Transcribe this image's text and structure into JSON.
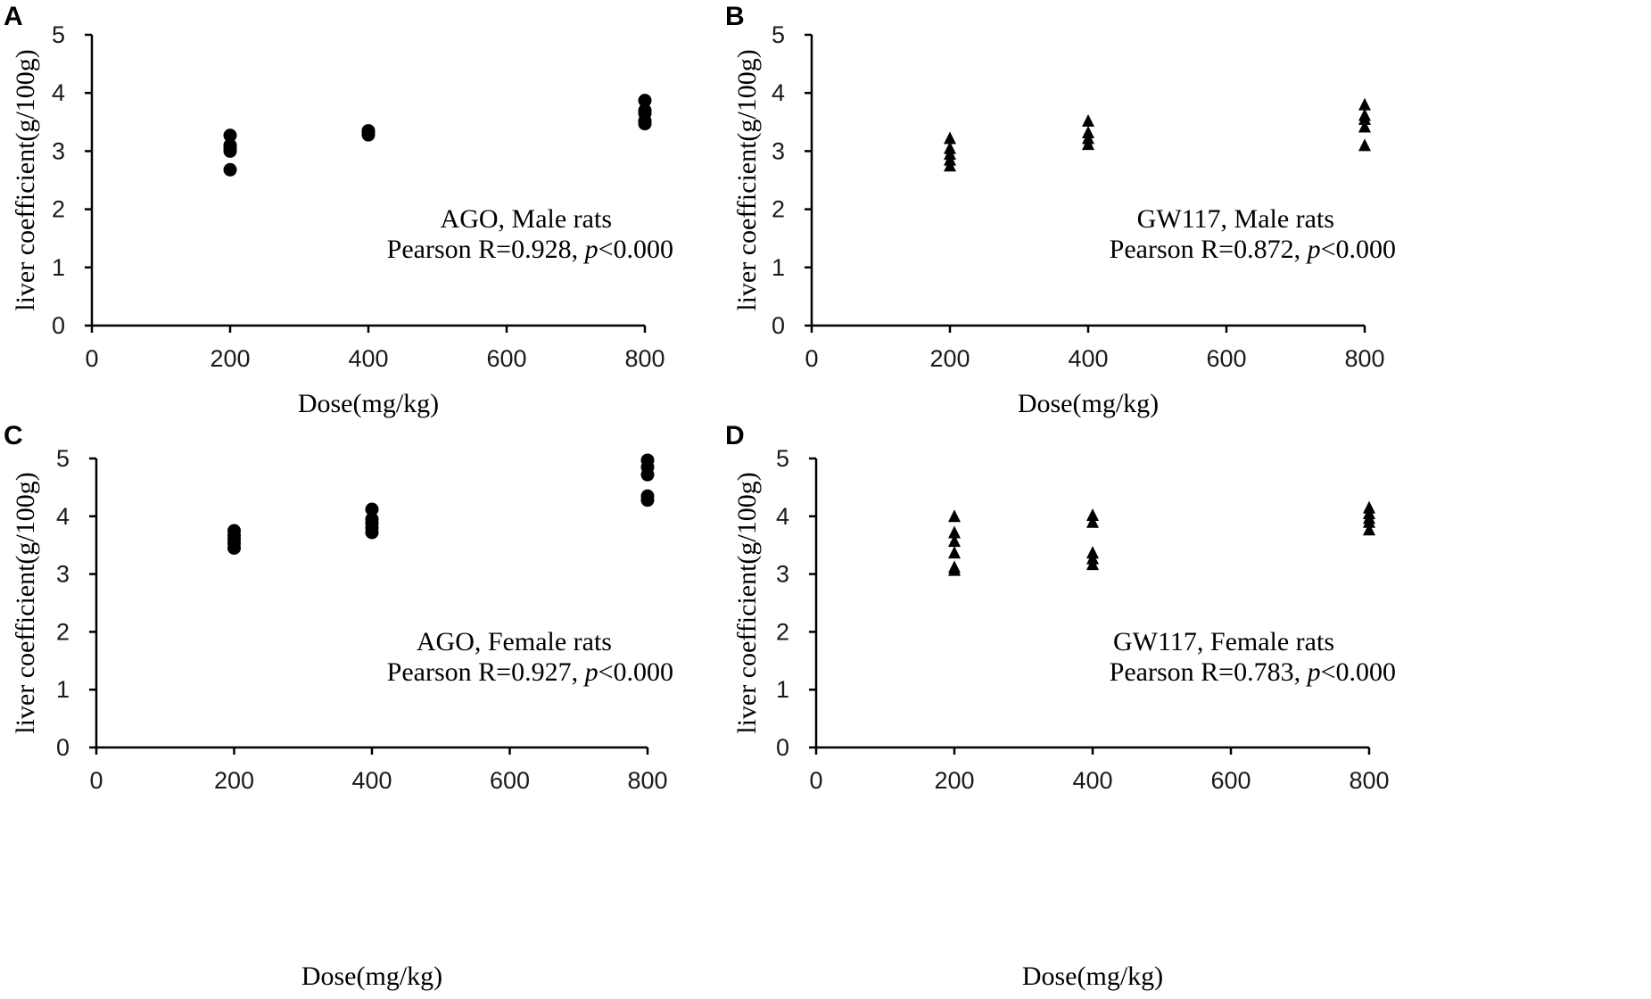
{
  "chart_data": [
    {
      "panel": "A",
      "type": "scatter",
      "marker": "circle",
      "title": "",
      "xlabel": "Dose(mg/kg)",
      "ylabel": "liver coefficient(g/100g)",
      "xlim": [
        0,
        800
      ],
      "ylim": [
        0,
        5
      ],
      "xticks": [
        "0",
        "200",
        "400",
        "600",
        "800"
      ],
      "yticks": [
        "0",
        "1",
        "2",
        "3",
        "4",
        "5"
      ],
      "grid": false,
      "annotation": {
        "line1": "AGO, Male rats",
        "line2_prefix": "Pearson R=0.928, ",
        "p_symbol": "p",
        "line2_suffix": "<0.000"
      },
      "series": [
        {
          "name": "AGO, Male rats",
          "x": [
            200,
            200,
            200,
            200,
            200,
            400,
            400,
            400,
            800,
            800,
            800,
            800,
            800
          ],
          "y": [
            2.68,
            3.0,
            3.05,
            3.1,
            3.27,
            3.28,
            3.32,
            3.35,
            3.47,
            3.52,
            3.65,
            3.7,
            3.87
          ]
        }
      ]
    },
    {
      "panel": "B",
      "type": "scatter",
      "marker": "triangle",
      "title": "",
      "xlabel": "Dose(mg/kg)",
      "ylabel": "liver coefficient(g/100g)",
      "xlim": [
        0,
        800
      ],
      "ylim": [
        0,
        5
      ],
      "xticks": [
        "0",
        "200",
        "400",
        "600",
        "800"
      ],
      "yticks": [
        "0",
        "1",
        "2",
        "3",
        "4",
        "5"
      ],
      "grid": false,
      "annotation": {
        "line1": "GW117, Male rats",
        "line2_prefix": "Pearson R=0.872, ",
        "p_symbol": "p",
        "line2_suffix": "<0.000"
      },
      "series": [
        {
          "name": "GW117, Male rats",
          "x": [
            200,
            200,
            200,
            200,
            200,
            400,
            400,
            400,
            400,
            800,
            800,
            800,
            800,
            800
          ],
          "y": [
            2.75,
            2.85,
            2.95,
            3.05,
            3.22,
            3.12,
            3.22,
            3.32,
            3.52,
            3.1,
            3.42,
            3.55,
            3.62,
            3.8
          ]
        }
      ]
    },
    {
      "panel": "C",
      "type": "scatter",
      "marker": "circle",
      "title": "",
      "xlabel": "Dose(mg/kg)",
      "ylabel": "liver coefficient(g/100g)",
      "xlim": [
        0,
        800
      ],
      "ylim": [
        0,
        5
      ],
      "xticks": [
        "0",
        "200",
        "400",
        "600",
        "800"
      ],
      "yticks": [
        "0",
        "1",
        "2",
        "3",
        "4",
        "5"
      ],
      "grid": false,
      "annotation": {
        "line1": "AGO, Female rats",
        "line2_prefix": "Pearson R=0.927, ",
        "p_symbol": "p",
        "line2_suffix": "<0.000"
      },
      "series": [
        {
          "name": "AGO, Female rats",
          "x": [
            200,
            200,
            200,
            200,
            200,
            400,
            400,
            400,
            400,
            400,
            800,
            800,
            800,
            800,
            800
          ],
          "y": [
            3.45,
            3.53,
            3.6,
            3.67,
            3.75,
            3.72,
            3.8,
            3.88,
            3.95,
            4.12,
            4.28,
            4.35,
            4.72,
            4.85,
            4.97
          ]
        }
      ]
    },
    {
      "panel": "D",
      "type": "scatter",
      "marker": "triangle",
      "title": "",
      "xlabel": "Dose(mg/kg)",
      "ylabel": "liver coefficient(g/100g)",
      "xlim": [
        0,
        800
      ],
      "ylim": [
        0,
        5
      ],
      "xticks": [
        "0",
        "200",
        "400",
        "600",
        "800"
      ],
      "yticks": [
        "0",
        "1",
        "2",
        "3",
        "4",
        "5"
      ],
      "grid": false,
      "annotation": {
        "line1": "GW117, Female rats",
        "line2_prefix": "Pearson R=0.783, ",
        "p_symbol": "p",
        "line2_suffix": "<0.000"
      },
      "series": [
        {
          "name": "GW117, Female rats",
          "x": [
            200,
            200,
            200,
            200,
            200,
            200,
            400,
            400,
            400,
            400,
            400,
            800,
            800,
            800,
            800,
            800
          ],
          "y": [
            3.07,
            3.12,
            3.37,
            3.57,
            3.72,
            4.0,
            3.17,
            3.27,
            3.37,
            3.9,
            4.02,
            3.77,
            3.9,
            3.97,
            4.05,
            4.15
          ]
        }
      ]
    }
  ]
}
